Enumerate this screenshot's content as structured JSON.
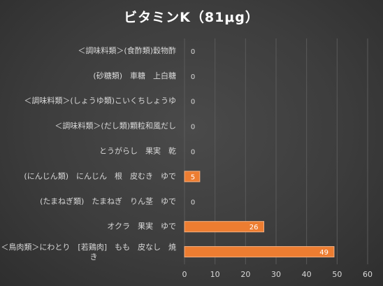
{
  "chart_data": {
    "type": "bar",
    "orientation": "horizontal",
    "title": "ビタミンK（81μg）",
    "categories": [
      "＜調味料類＞(食酢類)穀物酢",
      "(砂糖類)　車糖　上白糖",
      "＜調味料類＞(しょうゆ類)こいくちしょうゆ",
      "＜調味料類＞(だし類)顆粒和風だし",
      "とうがらし　果実　乾",
      "(にんじん類)　にんじん　根　皮むき　ゆで",
      "(たまねぎ類)　たまねぎ　りん茎　ゆで",
      "オクラ　果実　ゆで",
      "＜鳥肉類＞にわとり　[若鶏肉]　もも　皮なし　焼き"
    ],
    "values": [
      0,
      0,
      0,
      0,
      0,
      5,
      0,
      26,
      49
    ],
    "xlim": [
      0,
      60
    ],
    "xticks": [
      0,
      10,
      20,
      30,
      40,
      50,
      60
    ],
    "grid": true,
    "legend": "none",
    "colors": {
      "bar": "#ED7D31",
      "bar_border": "#F4B183",
      "background": "#404040",
      "gridline": "#5A5A5A",
      "text": "#D9D9D9",
      "title": "#FFFFFF"
    }
  }
}
